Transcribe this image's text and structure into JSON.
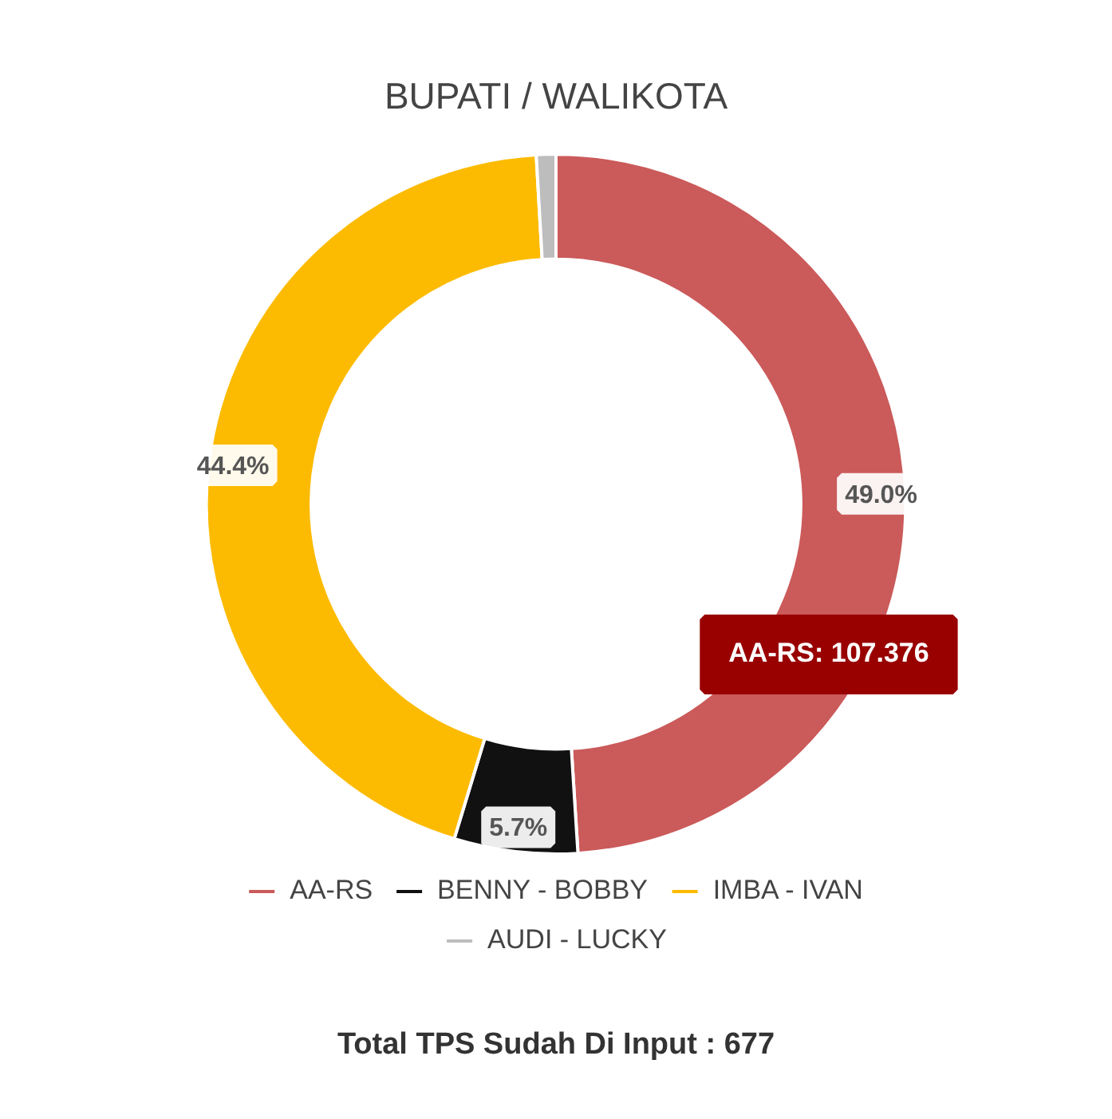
{
  "chart_data": {
    "type": "donut",
    "title": "BUPATI / WALIKOTA",
    "categories": [
      "AA-RS",
      "BENNY - BOBBY",
      "IMBA - IVAN",
      "AUDI - LUCKY"
    ],
    "values": [
      49.0,
      5.7,
      44.4,
      0.9
    ],
    "colors": [
      "#cb5a5a",
      "#111111",
      "#fcbb00",
      "#bdbdbd"
    ],
    "value_labels": [
      "49.0%",
      "5.7%",
      "44.4%",
      null
    ],
    "legend": "bottom",
    "annotations": [
      {
        "text": "AA-RS: 107.376",
        "x": "AA-RS"
      },
      "Total TPS Sudah Di Input : 677"
    ]
  }
}
